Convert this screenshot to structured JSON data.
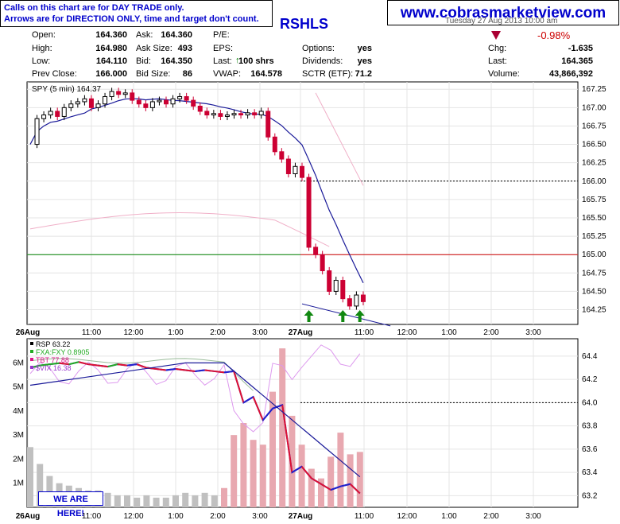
{
  "header": {
    "note_line1": "Calls on this chart are for DAY TRADE only.",
    "note_line2": "Arrows are for DIRECTION ONLY, time and target don't count.",
    "website": "www.cobrasmarketview.com",
    "symbol_title": "RSHLS",
    "date_partial": "Tuesday 27 Aug 2013 10:00 am",
    "pct_change": "-0.98%",
    "quote": {
      "open_label": "Open:",
      "open": "164.360",
      "high_label": "High:",
      "high": "164.980",
      "low_label": "Low:",
      "low": "164.110",
      "prev_close_label": "Prev Close:",
      "prev_close": "166.000",
      "ask_label": "Ask:",
      "ask": "164.360",
      "ask_size_label": "Ask Size:",
      "ask_size": "493",
      "bid_label": "Bid:",
      "bid": "164.350",
      "bid_size_label": "Bid Size:",
      "bid_size": "86",
      "pe_label": "P/E:",
      "eps_label": "EPS:",
      "last_label": "Last:",
      "last_shrs": "100 shrs",
      "vwap_label": "VWAP:",
      "vwap": "164.578",
      "options_label": "Options:",
      "options": "yes",
      "dividends_label": "Dividends:",
      "dividends": "yes",
      "sctr_label": "SCTR (ETF):",
      "sctr": "71.2",
      "chg_label": "Chg:",
      "chg": "-1.635",
      "last2_label": "Last:",
      "last2": "164.365",
      "volume_label": "Volume:",
      "volume": "43,866,392"
    }
  },
  "banner": "WE ARE HERE!",
  "colors": {
    "up": "#000000",
    "down": "#cc0033",
    "ma": "#1a1a99",
    "pink": "#f0b0c8",
    "green": "#008000",
    "red_line": "#cc0000",
    "arrow": "#118811",
    "volume": "#c0c0c0",
    "volume_red": "#e8a8b0"
  },
  "chart_data": [
    {
      "type": "candlestick",
      "legend": "SPY (5 min) 164.37",
      "x_ticks": [
        "26Aug",
        "11:00",
        "12:00",
        "1:00",
        "2:00",
        "3:00",
        "27Aug",
        "11:00",
        "12:00",
        "1:00",
        "2:00",
        "3:00"
      ],
      "y_ticks": [
        "164.25",
        "164.50",
        "164.75",
        "165.00",
        "165.25",
        "165.50",
        "165.75",
        "166.00",
        "166.25",
        "166.50",
        "166.75",
        "167.00",
        "167.25"
      ],
      "ylim": [
        164.05,
        167.35
      ],
      "reference_lines": [
        {
          "value": 166.0,
          "style": "dashed"
        },
        {
          "value": 165.0,
          "style": "solid"
        }
      ],
      "closes": [
        166.5,
        166.85,
        166.9,
        166.95,
        166.88,
        167.0,
        167.05,
        167.08,
        167.12,
        167.0,
        167.05,
        167.15,
        167.22,
        167.18,
        167.2,
        167.1,
        167.05,
        167.0,
        167.08,
        167.1,
        167.05,
        167.12,
        167.15,
        167.1,
        167.02,
        166.95,
        166.9,
        166.92,
        166.88,
        166.9,
        166.92,
        166.9,
        166.93,
        166.9,
        166.95,
        166.6,
        166.4,
        166.3,
        166.1,
        166.2,
        166.05,
        165.1,
        165.0,
        164.78,
        164.5,
        164.65,
        164.4,
        164.3,
        164.45,
        164.36
      ],
      "arrows": [
        "up",
        "up",
        "up"
      ]
    },
    {
      "type": "line",
      "legend": [
        "RSP 63.22",
        "FXA:FXY 0.8905",
        "TBT 77.88",
        "$VIX 16.38"
      ],
      "x_ticks": [
        "26Aug",
        "11:00",
        "12:00",
        "1:00",
        "2:00",
        "3:00",
        "27Aug",
        "11:00",
        "12:00",
        "1:00",
        "2:00",
        "3:00"
      ],
      "y_ticks_right": [
        "63.2",
        "63.4",
        "63.6",
        "63.8",
        "64.0",
        "64.2",
        "64.4"
      ],
      "y_ticks_left": [
        "1M",
        "2M",
        "3M",
        "4M",
        "5M",
        "6M"
      ],
      "ylim": [
        63.1,
        64.55
      ],
      "volume_ylim": [
        0,
        7
      ],
      "reference_lines": [
        {
          "value": 64.0,
          "style": "dashed"
        }
      ],
      "rsp": [
        64.3,
        64.32,
        64.33,
        64.34,
        64.33,
        64.35,
        64.33,
        64.32,
        64.31,
        64.33,
        64.32,
        64.33,
        64.3,
        64.29,
        64.28,
        64.29,
        64.28,
        64.27,
        64.28,
        64.27,
        64.26,
        64.27,
        64.0,
        64.05,
        63.85,
        63.95,
        63.98,
        63.4,
        63.45,
        63.35,
        63.3,
        63.25,
        63.28,
        63.3,
        63.22
      ],
      "volume_m": [
        2.5,
        1.8,
        1.3,
        1.0,
        0.9,
        0.8,
        0.7,
        0.7,
        0.6,
        0.5,
        0.5,
        0.4,
        0.5,
        0.4,
        0.4,
        0.5,
        0.6,
        0.5,
        0.6,
        0.5,
        0.8,
        3.0,
        3.5,
        2.8,
        2.6,
        4.8,
        6.6,
        3.8,
        2.6,
        1.6,
        1.2,
        2.1,
        3.1,
        2.2,
        2.3
      ]
    }
  ]
}
